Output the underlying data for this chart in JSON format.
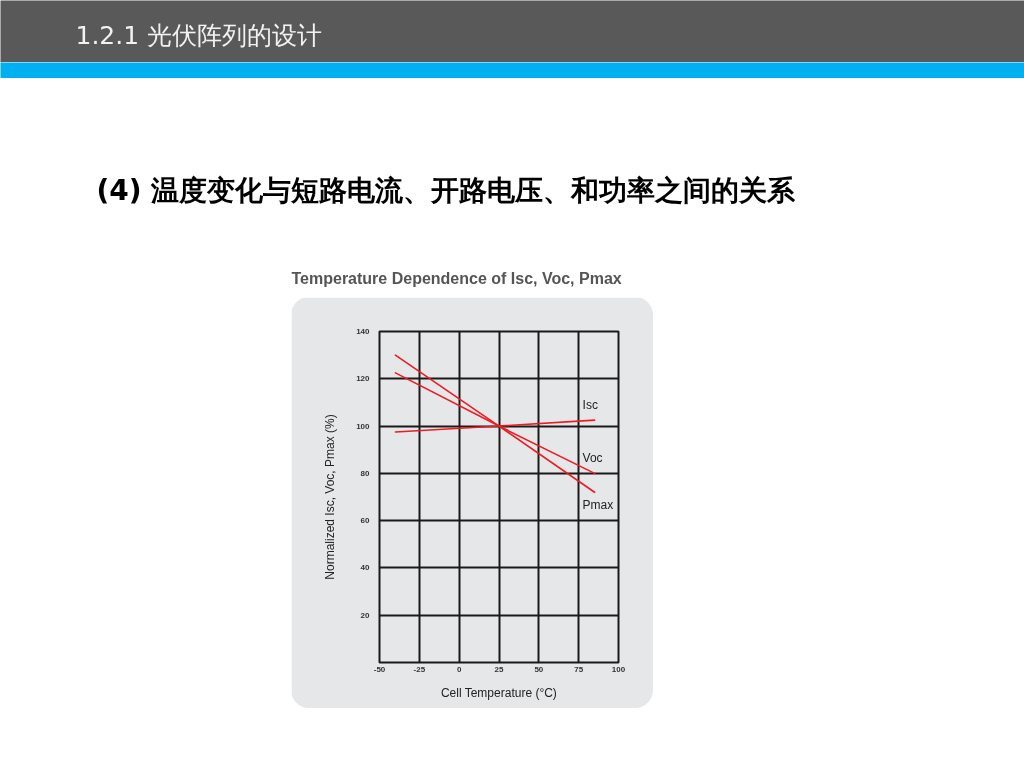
{
  "chart_data": {
    "type": "line",
    "title": "Temperature Dependence of Isc, Voc, Pmax",
    "xlabel": "Cell Temperature (°C)",
    "ylabel": "Normalized Isc, Voc, Pmax (%)",
    "annotations": [
      "1.2.1 光伏阵列的设计",
      "(4) 温度变化与短路电流、开路电压、和功率之间的关系"
    ],
    "xlim": [
      -50,
      100
    ],
    "xticks": [
      -50,
      -25,
      0,
      25,
      50,
      75,
      100
    ],
    "ylim": [
      0,
      140
    ],
    "yticks": [
      20,
      40,
      60,
      80,
      100,
      120,
      140
    ],
    "grid": true,
    "line_style": "solid",
    "x": [
      -40,
      25,
      85
    ],
    "series": [
      {
        "name": "Isc",
        "color": "#ed1c24",
        "values": [
          97.5,
          100,
          102.5
        ]
      },
      {
        "name": "Voc",
        "color": "#ed1c24",
        "values": [
          122.5,
          100,
          80
        ]
      },
      {
        "name": "Pmax",
        "color": "#ed1c24",
        "values": [
          130,
          100,
          72
        ]
      }
    ]
  }
}
